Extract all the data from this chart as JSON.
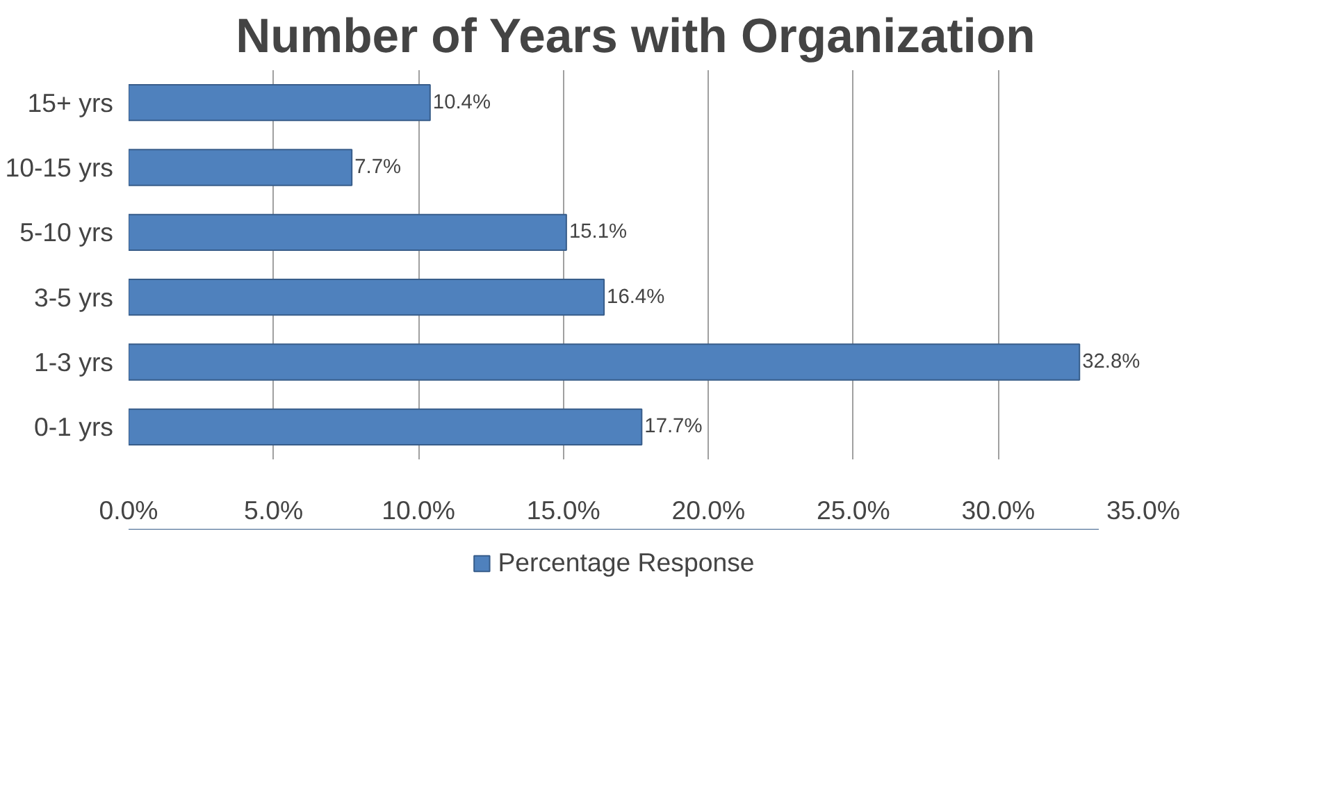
{
  "chart_data": {
    "type": "bar",
    "orientation": "horizontal",
    "title": "Number of Years with Organization",
    "categories": [
      "15+ yrs",
      "10-15 yrs",
      "5-10 yrs",
      "3-5 yrs",
      "1-3 yrs",
      "0-1 yrs"
    ],
    "series": [
      {
        "name": "Percentage Response",
        "color": "#4f81bd",
        "values": [
          10.4,
          7.7,
          15.1,
          16.4,
          32.8,
          17.7
        ]
      }
    ],
    "value_labels": [
      "10.4%",
      "7.7%",
      "15.1%",
      "16.4%",
      "32.8%",
      "17.7%"
    ],
    "xlim": [
      0,
      35
    ],
    "xticks": [
      {
        "value": 0,
        "label": "0.0%"
      },
      {
        "value": 5,
        "label": "5.0%"
      },
      {
        "value": 10,
        "label": "10.0%"
      },
      {
        "value": 15,
        "label": "15.0%"
      },
      {
        "value": 20,
        "label": "20.0%"
      },
      {
        "value": 25,
        "label": "25.0%"
      },
      {
        "value": 30,
        "label": "30.0%"
      },
      {
        "value": 35,
        "label": "35.0%"
      }
    ],
    "grid": "x",
    "legend": "bottom"
  }
}
